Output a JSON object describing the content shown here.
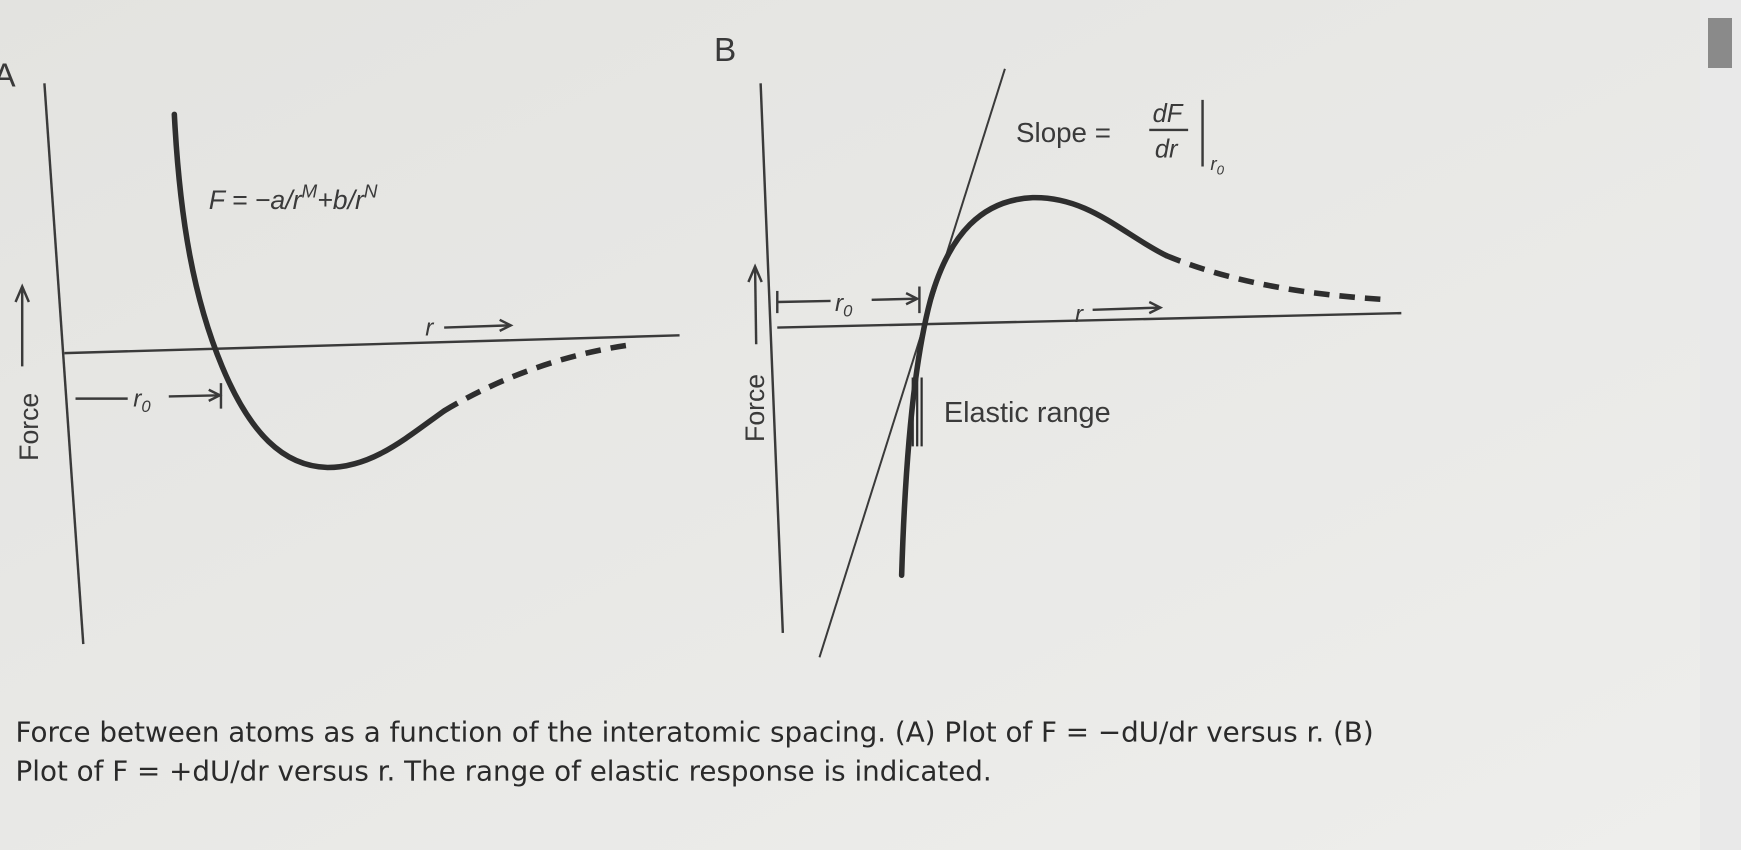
{
  "panels": [
    {
      "label": "A",
      "y_axis_label": "Force",
      "x_axis_label": "r",
      "spacing_label": {
        "symbol": "r",
        "subscript": "0"
      },
      "equation": {
        "parts": [
          {
            "text": "F = −a/r"
          },
          {
            "text": "M",
            "sup": true
          },
          {
            "text": "+b/r"
          },
          {
            "text": "N",
            "sup": true
          }
        ]
      }
    },
    {
      "label": "B",
      "y_axis_label": "Force",
      "x_axis_label": "r",
      "spacing_label": {
        "symbol": "r",
        "subscript": "0"
      },
      "slope_label": {
        "prefix": "Slope =",
        "numerator": "dF",
        "denominator": "dr",
        "at": {
          "symbol": "r",
          "subscript": "0"
        }
      },
      "region_label": "Elastic range"
    }
  ],
  "caption": [
    "Force between atoms as a function of the interatomic spacing. (A) Plot of F = −dU/dr versus r. (B)",
    "Plot of F = +dU/dr versus r. The range of elastic response is indicated."
  ]
}
